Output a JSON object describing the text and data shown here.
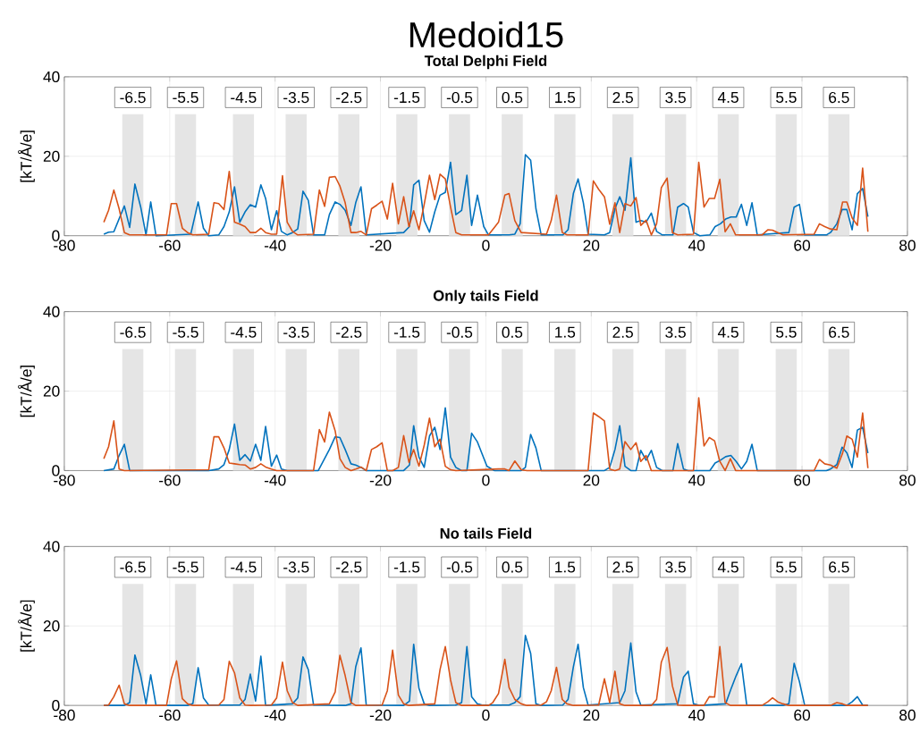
{
  "chart_data": [
    {
      "type": "line",
      "title": "Medoid15",
      "subtitle": "Total Delphi Field",
      "ylabel": "[kT/Å/e]",
      "xlim": [
        -80,
        80
      ],
      "ylim": [
        0,
        40
      ],
      "xticks": [
        -80,
        -60,
        -40,
        -20,
        0,
        20,
        40,
        60,
        80
      ],
      "yticks": [
        0,
        20,
        40
      ],
      "grid": true,
      "bands": [
        {
          "axis": "x",
          "from": -69,
          "to": -65,
          "label": "-6.5",
          "color": "#e5e5e5"
        },
        {
          "axis": "x",
          "from": -59,
          "to": -55,
          "label": "-5.5",
          "color": "#e5e5e5"
        },
        {
          "axis": "x",
          "from": -48,
          "to": -44,
          "label": "-4.5",
          "color": "#e5e5e5"
        },
        {
          "axis": "x",
          "from": -38,
          "to": -34,
          "label": "-3.5",
          "color": "#e5e5e5"
        },
        {
          "axis": "x",
          "from": -28,
          "to": -24,
          "label": "-2.5",
          "color": "#e5e5e5"
        },
        {
          "axis": "x",
          "from": -17,
          "to": -13,
          "label": "-1.5",
          "color": "#e5e5e5"
        },
        {
          "axis": "x",
          "from": -7,
          "to": -3,
          "label": "-0.5",
          "color": "#e5e5e5"
        },
        {
          "axis": "x",
          "from": 3,
          "to": 7,
          "label": "0.5",
          "color": "#e5e5e5"
        },
        {
          "axis": "x",
          "from": 13,
          "to": 17,
          "label": "1.5",
          "color": "#e5e5e5"
        },
        {
          "axis": "x",
          "from": 24,
          "to": 28,
          "label": "2.5",
          "color": "#e5e5e5"
        },
        {
          "axis": "x",
          "from": 34,
          "to": 38,
          "label": "3.5",
          "color": "#e5e5e5"
        },
        {
          "axis": "x",
          "from": 44,
          "to": 48,
          "label": "4.5",
          "color": "#e5e5e5"
        },
        {
          "axis": "x",
          "from": 55,
          "to": 59,
          "label": "5.5",
          "color": "#e5e5e5"
        },
        {
          "axis": "x",
          "from": 65,
          "to": 69,
          "label": "6.5",
          "color": "#e5e5e5"
        }
      ],
      "series": [
        {
          "color": "#0072bd",
          "x": [
            -72.5,
            -71.6,
            -70.6,
            -68.6,
            -67.6,
            -66.6,
            -65.5,
            -64.5,
            -63.6,
            -62.6,
            -56,
            -54.6,
            -53.6,
            -52.6,
            -50.7,
            -49.7,
            -48.7,
            -47.7,
            -46.7,
            -45.7,
            -44.7,
            -43.7,
            -42.7,
            -41.8,
            -40.7,
            -39.7,
            -38.8,
            -37.7,
            -36.7,
            -35.7,
            -34.7,
            -33.7,
            -32.7,
            -30.6,
            -29.7,
            -28.6,
            -27.7,
            -26.7,
            -25.6,
            -24.7,
            -23.7,
            -22.7,
            -15.6,
            -14.5,
            -13.7,
            -12.7,
            -11.7,
            -10.7,
            -9.7,
            -8.7,
            -7.7,
            -6.7,
            -5.7,
            -4.6,
            -3.6,
            -2.7,
            -1.6,
            -0.4,
            0.5,
            4.4,
            5.5,
            6.5,
            7.5,
            8.5,
            9.5,
            10.5,
            14.6,
            15.6,
            16.6,
            17.5,
            18.5,
            19.4,
            22.5,
            23.5,
            24.5,
            25.4,
            26.4,
            27.5,
            28.5,
            29.4,
            30.4,
            31.4,
            32.4,
            33.5,
            35.5,
            36.4,
            37.5,
            38.4,
            39.4,
            40.6,
            42.5,
            43.5,
            44.5,
            45.5,
            46.5,
            47.5,
            48.5,
            49.5,
            50.5,
            51.5,
            57.5,
            58.5,
            59.5,
            60.5,
            64.6,
            65.4,
            66.6,
            67.6,
            68.5,
            69.5,
            70.5,
            71.5,
            72.5
          ],
          "values": [
            0.4,
            0.9,
            1.0,
            7.5,
            2.1,
            13.0,
            7.2,
            0.2,
            8.5,
            0,
            0.4,
            8.5,
            1.9,
            0,
            0.2,
            2.3,
            6,
            12.3,
            3.4,
            6,
            7.8,
            7.2,
            12.8,
            9.4,
            1.5,
            6.3,
            1.1,
            0.2,
            0.8,
            1.7,
            11.2,
            8.9,
            0.2,
            0.2,
            5.3,
            8.5,
            7.9,
            6.4,
            2.6,
            8.3,
            12.3,
            0.2,
            0.8,
            2.3,
            12.8,
            14.0,
            3.8,
            0.9,
            6,
            10.2,
            10.9,
            18.5,
            5.3,
            6.4,
            15.2,
            2.6,
            10.2,
            2.3,
            0.2,
            0.2,
            0.4,
            3.0,
            20.4,
            19.0,
            6.8,
            0.2,
            0.2,
            1.5,
            10.6,
            14.3,
            8.3,
            0.4,
            0.2,
            0.8,
            6.8,
            9.8,
            6.4,
            19.6,
            3.4,
            3.8,
            3.4,
            5.7,
            1.1,
            0.2,
            0.2,
            7.2,
            8.1,
            7.2,
            0.8,
            0,
            0.2,
            2.3,
            3.0,
            4.2,
            4.7,
            4.7,
            7.9,
            2.6,
            8.3,
            0.2,
            0.8,
            7.2,
            7.9,
            0.2,
            0.2,
            0.8,
            3.0,
            6.6,
            6.6,
            1.5,
            10.6,
            11.9,
            4.8
          ]
        },
        {
          "color": "#d95319",
          "x": [
            -72.5,
            -71.6,
            -70.6,
            -69.6,
            -68.6,
            -67.6,
            -60.6,
            -59.7,
            -58.7,
            -57.6,
            -56.6,
            -55.6,
            -52.6,
            -51.6,
            -50.7,
            -49.7,
            -48.7,
            -47.7,
            -46.7,
            -45.7,
            -44.7,
            -43.7,
            -42.7,
            -41.8,
            -40.7,
            -39.7,
            -38.6,
            -37.7,
            -36.7,
            -35.7,
            -32.7,
            -31.6,
            -30.6,
            -29.7,
            -28.6,
            -27.7,
            -26.7,
            -25.6,
            -24.7,
            -23.7,
            -22.7,
            -21.7,
            -20.7,
            -19.7,
            -18.7,
            -17.7,
            -16.6,
            -15.6,
            -14.6,
            -13.7,
            -12.7,
            -11.7,
            -10.7,
            -9.7,
            -8.7,
            -7.7,
            -6.7,
            -5.7,
            -4.6,
            0.5,
            2.4,
            3.6,
            4.4,
            5.5,
            6.7,
            11.5,
            12.4,
            13.4,
            14.5,
            15.4,
            19.4,
            20.4,
            21.4,
            22.5,
            23.5,
            24.5,
            25.4,
            26.4,
            27.5,
            28.5,
            29.4,
            30.4,
            31.4,
            32.4,
            33.3,
            34.4,
            35.4,
            36.4,
            39.4,
            40.4,
            41.4,
            42.4,
            43.4,
            44.4,
            45.4,
            46.4,
            47.4,
            52.4,
            53.5,
            54.4,
            55.4,
            56.4,
            62.3,
            63.3,
            64.3,
            65.4,
            66.6,
            67.7,
            68.5,
            69.5,
            70.5,
            71.5,
            72.5
          ],
          "values": [
            3.4,
            6.4,
            11.5,
            6.8,
            0.8,
            0.2,
            0.2,
            8.1,
            8.1,
            1.9,
            0.8,
            0.2,
            0.4,
            8.3,
            8.1,
            6.6,
            16.2,
            3.4,
            2.9,
            2.3,
            0.8,
            0.8,
            1.9,
            0.8,
            0.4,
            0.4,
            15.1,
            3.4,
            1.1,
            0.2,
            0.4,
            11.5,
            7.4,
            14.7,
            14.9,
            12.5,
            8.3,
            0.8,
            0.8,
            1.1,
            0.2,
            6.8,
            7.7,
            8.7,
            4.2,
            13.2,
            3.0,
            9.8,
            2.3,
            6.3,
            1.5,
            7.9,
            15.2,
            9.1,
            15.5,
            14.3,
            7.2,
            0.8,
            0.2,
            0.2,
            3.4,
            10.2,
            10.6,
            3.8,
            0.8,
            0.4,
            3.8,
            10.2,
            0.8,
            0.2,
            0.2,
            13.8,
            11.7,
            9.8,
            2.9,
            8.3,
            0.8,
            8.1,
            7.5,
            9.6,
            2.6,
            3.9,
            0.2,
            3.0,
            12.1,
            14.5,
            0.8,
            0.2,
            0.4,
            18.5,
            7.2,
            9.4,
            9.4,
            14.2,
            1.0,
            3.0,
            0.2,
            0.2,
            1.5,
            1.4,
            0.8,
            0.2,
            0.4,
            3.0,
            2.3,
            1.7,
            1.5,
            8.5,
            8.5,
            4.5,
            2.6,
            17.0,
            1.0
          ]
        }
      ]
    },
    {
      "type": "line",
      "title": "Only tails Field",
      "ylabel": "[kT/Å/e]",
      "xlim": [
        -80,
        80
      ],
      "ylim": [
        0,
        40
      ],
      "xticks": [
        -80,
        -60,
        -40,
        -20,
        0,
        20,
        40,
        60,
        80
      ],
      "yticks": [
        0,
        20,
        40
      ],
      "grid": true,
      "bands": [
        {
          "axis": "x",
          "from": -69,
          "to": -65,
          "label": "-6.5",
          "color": "#e5e5e5"
        },
        {
          "axis": "x",
          "from": -59,
          "to": -55,
          "label": "-5.5",
          "color": "#e5e5e5"
        },
        {
          "axis": "x",
          "from": -48,
          "to": -44,
          "label": "-4.5",
          "color": "#e5e5e5"
        },
        {
          "axis": "x",
          "from": -38,
          "to": -34,
          "label": "-3.5",
          "color": "#e5e5e5"
        },
        {
          "axis": "x",
          "from": -28,
          "to": -24,
          "label": "-2.5",
          "color": "#e5e5e5"
        },
        {
          "axis": "x",
          "from": -17,
          "to": -13,
          "label": "-1.5",
          "color": "#e5e5e5"
        },
        {
          "axis": "x",
          "from": -7,
          "to": -3,
          "label": "-0.5",
          "color": "#e5e5e5"
        },
        {
          "axis": "x",
          "from": 3,
          "to": 7,
          "label": "0.5",
          "color": "#e5e5e5"
        },
        {
          "axis": "x",
          "from": 13,
          "to": 17,
          "label": "1.5",
          "color": "#e5e5e5"
        },
        {
          "axis": "x",
          "from": 24,
          "to": 28,
          "label": "2.5",
          "color": "#e5e5e5"
        },
        {
          "axis": "x",
          "from": 34,
          "to": 38,
          "label": "3.5",
          "color": "#e5e5e5"
        },
        {
          "axis": "x",
          "from": 44,
          "to": 48,
          "label": "4.5",
          "color": "#e5e5e5"
        },
        {
          "axis": "x",
          "from": 55,
          "to": 59,
          "label": "5.5",
          "color": "#e5e5e5"
        },
        {
          "axis": "x",
          "from": 65,
          "to": 69,
          "label": "6.5",
          "color": "#e5e5e5"
        }
      ],
      "series": [
        {
          "color": "#0072bd",
          "x": [
            -72.5,
            -70.6,
            -69.6,
            -68.6,
            -67.6,
            -52.6,
            -50.7,
            -49.7,
            -48.7,
            -47.7,
            -46.7,
            -45.7,
            -44.7,
            -43.7,
            -42.7,
            -41.8,
            -40.7,
            -39.7,
            -38.8,
            -37.7,
            -31.8,
            -29.7,
            -28.6,
            -27.7,
            -26.7,
            -25.6,
            -24.7,
            -23.7,
            -22.7,
            -15.6,
            -14.5,
            -13.7,
            -12.7,
            -11.7,
            -10.7,
            -9.7,
            -8.7,
            -7.7,
            -6.7,
            -5.7,
            -4.6,
            -3.6,
            -2.7,
            -1.6,
            0.2,
            1.6,
            6.7,
            7.5,
            8.5,
            9.5,
            10.5,
            22.5,
            23.5,
            24.5,
            25.4,
            26.4,
            27.5,
            28.5,
            29.4,
            30.4,
            31.4,
            32.4,
            33.5,
            35.5,
            36.4,
            37.5,
            38.4,
            42.5,
            43.5,
            44.5,
            45.5,
            46.5,
            47.5,
            48.5,
            49.5,
            50.5,
            51.5,
            64.6,
            65.4,
            66.6,
            67.6,
            68.5,
            69.5,
            70.5,
            71.5,
            72.5
          ],
          "values": [
            0,
            0.4,
            3.8,
            6.6,
            0,
            0,
            0.4,
            1.5,
            5.3,
            11.7,
            2.6,
            4.0,
            2.4,
            6.6,
            2.6,
            11.1,
            1.1,
            3.9,
            0.4,
            0,
            0,
            5.3,
            8.5,
            8.3,
            5.3,
            1.7,
            1.4,
            0.8,
            0,
            0,
            1.4,
            11.3,
            3.4,
            0.8,
            8.7,
            10.9,
            5.3,
            15.8,
            3.4,
            0.8,
            0,
            0,
            9.4,
            7.2,
            1.1,
            0,
            0,
            0.8,
            9.1,
            5.7,
            0,
            0,
            0.8,
            5.3,
            11.3,
            1.1,
            0,
            0,
            5.1,
            2.6,
            5.1,
            0.8,
            0,
            0,
            6.8,
            0.4,
            0,
            0,
            1.9,
            2.6,
            3.5,
            3.8,
            2.3,
            0.4,
            2.3,
            6.6,
            0,
            0,
            0.4,
            1.5,
            5.9,
            4.5,
            0.8,
            10.2,
            10.9,
            4.4
          ]
        },
        {
          "color": "#d95319",
          "x": [
            -72.5,
            -71.6,
            -70.6,
            -69.6,
            -68.6,
            -52.6,
            -51.6,
            -50.7,
            -49.7,
            -48.7,
            -47.7,
            -46.7,
            -45.7,
            -44.7,
            -43.7,
            -42.7,
            -41.8,
            -40.7,
            -39.7,
            -32.7,
            -31.6,
            -30.6,
            -29.7,
            -28.6,
            -27.7,
            -26.7,
            -25.6,
            -24.7,
            -23.7,
            -22.7,
            -21.7,
            -20.7,
            -19.7,
            -18.7,
            -17.7,
            -16.6,
            -15.6,
            -14.6,
            -13.7,
            -12.7,
            -11.7,
            -10.7,
            -9.7,
            -8.7,
            -7.7,
            -6.7,
            -5.7,
            2.4,
            3.6,
            4.4,
            5.5,
            6.7,
            7.8,
            19.4,
            20.4,
            21.4,
            22.5,
            23.5,
            24.5,
            25.4,
            26.4,
            27.5,
            28.5,
            29.4,
            30.4,
            31.4,
            39.4,
            40.4,
            41.4,
            42.4,
            43.4,
            44.4,
            45.4,
            46.4,
            47.4,
            62.3,
            63.3,
            64.3,
            65.4,
            66.6,
            67.7,
            68.5,
            69.5,
            70.5,
            71.5,
            72.5
          ],
          "values": [
            3.0,
            6.0,
            12.5,
            0.4,
            0,
            0.2,
            8.5,
            8.5,
            5.7,
            1.9,
            1.7,
            1.5,
            1.4,
            0.4,
            0.8,
            1.7,
            0.9,
            0.4,
            0,
            0,
            10.3,
            7.2,
            14.7,
            10.0,
            3.0,
            0.8,
            0,
            0.4,
            0.9,
            0,
            5.3,
            6.0,
            7.0,
            0,
            0,
            0.8,
            8.8,
            2.1,
            5.3,
            1.1,
            6.4,
            13.2,
            6.0,
            7.9,
            1.1,
            0.2,
            0,
            0.4,
            0.4,
            0,
            2.4,
            0.2,
            0,
            0,
            14.5,
            13.6,
            12.5,
            0.4,
            0,
            0.4,
            7.3,
            5.3,
            7.0,
            2.3,
            3.8,
            0,
            0,
            18.3,
            6.2,
            8.3,
            7.5,
            2.3,
            0,
            3.0,
            0,
            0,
            2.8,
            1.7,
            1.4,
            0.6,
            4.4,
            8.7,
            7.9,
            3.4,
            14.5,
            0.6
          ]
        }
      ]
    },
    {
      "type": "line",
      "title": "No tails Field",
      "ylabel": "[kT/Å/e]",
      "xlim": [
        -80,
        80
      ],
      "ylim": [
        0,
        40
      ],
      "xticks": [
        -80,
        -60,
        -40,
        -20,
        0,
        20,
        40,
        60,
        80
      ],
      "yticks": [
        0,
        20,
        40
      ],
      "grid": true,
      "bands": [
        {
          "axis": "x",
          "from": -69,
          "to": -65,
          "label": "-6.5",
          "color": "#e5e5e5"
        },
        {
          "axis": "x",
          "from": -59,
          "to": -55,
          "label": "-5.5",
          "color": "#e5e5e5"
        },
        {
          "axis": "x",
          "from": -48,
          "to": -44,
          "label": "-4.5",
          "color": "#e5e5e5"
        },
        {
          "axis": "x",
          "from": -38,
          "to": -34,
          "label": "-3.5",
          "color": "#e5e5e5"
        },
        {
          "axis": "x",
          "from": -28,
          "to": -24,
          "label": "-2.5",
          "color": "#e5e5e5"
        },
        {
          "axis": "x",
          "from": -17,
          "to": -13,
          "label": "-1.5",
          "color": "#e5e5e5"
        },
        {
          "axis": "x",
          "from": -7,
          "to": -3,
          "label": "-0.5",
          "color": "#e5e5e5"
        },
        {
          "axis": "x",
          "from": 3,
          "to": 7,
          "label": "0.5",
          "color": "#e5e5e5"
        },
        {
          "axis": "x",
          "from": 13,
          "to": 17,
          "label": "1.5",
          "color": "#e5e5e5"
        },
        {
          "axis": "x",
          "from": 24,
          "to": 28,
          "label": "2.5",
          "color": "#e5e5e5"
        },
        {
          "axis": "x",
          "from": 34,
          "to": 38,
          "label": "3.5",
          "color": "#e5e5e5"
        },
        {
          "axis": "x",
          "from": 44,
          "to": 48,
          "label": "4.5",
          "color": "#e5e5e5"
        },
        {
          "axis": "x",
          "from": 55,
          "to": 59,
          "label": "5.5",
          "color": "#e5e5e5"
        },
        {
          "axis": "x",
          "from": 65,
          "to": 69,
          "label": "6.5",
          "color": "#e5e5e5"
        }
      ],
      "series": [
        {
          "color": "#0072bd",
          "x": [
            -72.5,
            -68.6,
            -67.6,
            -66.6,
            -65.5,
            -64.5,
            -63.6,
            -62.6,
            -56.6,
            -55.6,
            -54.6,
            -53.6,
            -52.6,
            -46.7,
            -45.7,
            -44.7,
            -43.7,
            -42.7,
            -41.8,
            -36.7,
            -35.7,
            -34.7,
            -33.7,
            -32.7,
            -26.7,
            -25.6,
            -24.7,
            -23.7,
            -22.7,
            -15.6,
            -14.5,
            -13.7,
            -12.7,
            -11.7,
            -10.7,
            -5.7,
            -4.6,
            -3.6,
            -2.7,
            -1.6,
            -0.7,
            4.4,
            5.5,
            6.5,
            7.5,
            8.5,
            9.5,
            10.5,
            14.6,
            15.6,
            16.6,
            17.5,
            18.5,
            19.4,
            25.4,
            26.4,
            27.5,
            28.5,
            29.4,
            36.4,
            37.5,
            38.4,
            39.4,
            40.6,
            45.5,
            46.5,
            47.5,
            48.5,
            49.5,
            56.4,
            57.5,
            58.5,
            59.5,
            60.5,
            68.5,
            69.5,
            70.5,
            71.5,
            72.5
          ],
          "values": [
            0,
            0,
            0.7,
            12.7,
            7.5,
            0.4,
            7.7,
            0,
            0,
            0.5,
            9.5,
            1.9,
            0.1,
            0.1,
            1.5,
            7.9,
            1.1,
            12.4,
            0,
            0.4,
            1.9,
            12.2,
            9.0,
            0.1,
            0,
            0.4,
            9.7,
            14.5,
            0.1,
            0,
            1.1,
            15.4,
            4.3,
            0.4,
            0,
            0.1,
            0.7,
            14.8,
            2.2,
            0.4,
            0.1,
            0.1,
            0.7,
            2.2,
            17.6,
            13.1,
            0.4,
            0,
            0.1,
            1.5,
            9.7,
            15.4,
            4.5,
            0.1,
            0.7,
            3.7,
            15.7,
            3.4,
            0.1,
            0.4,
            7.1,
            8.6,
            0.4,
            0,
            0.4,
            4.1,
            7.5,
            10.5,
            0.1,
            0,
            0.4,
            10.6,
            6.0,
            0,
            0,
            0.9,
            2.2,
            0.1,
            0
          ]
        },
        {
          "color": "#d95319",
          "x": [
            -72.5,
            -71.6,
            -70.6,
            -69.6,
            -68.6,
            -67.6,
            -60.6,
            -59.7,
            -58.7,
            -57.6,
            -56.6,
            -55.6,
            -50.7,
            -49.7,
            -48.7,
            -47.7,
            -46.7,
            -45.7,
            -44.7,
            -40.7,
            -39.7,
            -38.6,
            -37.7,
            -36.7,
            -35.7,
            -29.7,
            -28.6,
            -27.7,
            -26.7,
            -25.6,
            -24.7,
            -19.7,
            -18.7,
            -17.7,
            -16.6,
            -15.6,
            -14.6,
            -9.7,
            -8.7,
            -7.7,
            -6.7,
            -5.7,
            -4.6,
            0.5,
            1.3,
            2.4,
            3.6,
            4.4,
            5.5,
            6.7,
            7.8,
            10.5,
            11.5,
            12.4,
            13.4,
            14.5,
            15.4,
            16.6,
            21.4,
            22.5,
            23.5,
            24.5,
            25.4,
            26.4,
            31.4,
            32.4,
            33.3,
            34.4,
            35.4,
            36.4,
            37.5,
            41.4,
            42.4,
            43.4,
            44.4,
            45.4,
            46.4,
            52.4,
            53.5,
            54.4,
            55.4,
            56.4,
            57.5,
            65.4,
            66.6,
            67.7,
            68.5,
            72.5
          ],
          "values": [
            0,
            0.1,
            2.2,
            5.1,
            0.4,
            0,
            0,
            6.7,
            11.2,
            1.7,
            0.4,
            0,
            0.1,
            1.5,
            11.1,
            8.2,
            1.9,
            0.1,
            0,
            0.1,
            1.9,
            10.9,
            3.7,
            0.7,
            0,
            0.4,
            3.4,
            12.6,
            7.5,
            0.7,
            0,
            0.1,
            3.7,
            13.9,
            2.6,
            0.4,
            0,
            0.4,
            9.0,
            14.8,
            6.4,
            0.7,
            0,
            0,
            0.7,
            3.0,
            11.6,
            4.5,
            1.5,
            0.4,
            0,
            0.1,
            0.9,
            3.7,
            9.6,
            1.5,
            0.4,
            0,
            0.1,
            6.7,
            0.7,
            8.6,
            0.4,
            0,
            0,
            1.5,
            10.9,
            14.6,
            4.9,
            0.1,
            0,
            0,
            2.2,
            2.1,
            14.8,
            0.7,
            0,
            0,
            0.9,
            1.9,
            0.9,
            0.4,
            0,
            0,
            0.7,
            0.4,
            0,
            0
          ]
        }
      ]
    }
  ]
}
